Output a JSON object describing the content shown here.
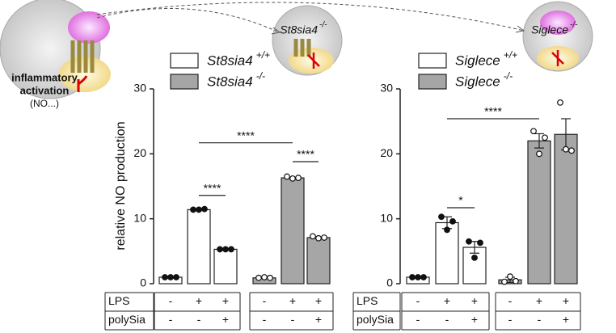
{
  "illustration": {
    "labels": [
      "inflammatory",
      "activation",
      "(NO...)",
      "St8sia4",
      "-/-",
      "Siglece",
      "-/-"
    ]
  },
  "chart_data": [
    {
      "type": "bar",
      "ylabel": "relative NO production",
      "ylim": [
        0,
        30
      ],
      "yticks": [
        0,
        10,
        20,
        30
      ],
      "grid": false,
      "series": [
        {
          "name": "St8sia4",
          "genotype": "+/+",
          "color": "#ffffff",
          "values": [
            1.0,
            11.4,
            5.3
          ],
          "points": [
            [
              1.0,
              1.0,
              1.0
            ],
            [
              11.4,
              11.4,
              11.5
            ],
            [
              5.3,
              5.3,
              5.3
            ]
          ]
        },
        {
          "name": "St8sia4",
          "genotype": "-/-",
          "color": "#a6a6a6",
          "values": [
            0.9,
            16.3,
            7.1
          ],
          "points": [
            [
              0.9,
              1.0,
              0.9
            ],
            [
              16.5,
              16.2,
              16.3
            ],
            [
              7.3,
              7.0,
              7.1
            ]
          ]
        }
      ],
      "annotations": [
        {
          "text": "****",
          "y": 13.6
        },
        {
          "text": "****",
          "y": 21.7
        },
        {
          "text": "****",
          "y": 18.8
        }
      ],
      "table": [
        {
          "label": "LPS",
          "cells": [
            "-",
            "+",
            "+",
            "-",
            "+",
            "+"
          ]
        },
        {
          "label": "polySia",
          "cells": [
            "-",
            "-",
            "+",
            "-",
            "-",
            "+"
          ]
        }
      ]
    },
    {
      "type": "bar",
      "ylim": [
        0,
        30
      ],
      "yticks": [
        0,
        10,
        20,
        30
      ],
      "grid": false,
      "series": [
        {
          "name": "Siglece",
          "genotype": "+/+",
          "color": "#ffffff",
          "values": [
            1.0,
            9.4,
            5.6
          ],
          "errors": [
            0.1,
            0.9,
            0.9
          ],
          "points": [
            [
              1.0,
              1.0,
              1.0
            ],
            [
              10.3,
              8.3,
              9.6
            ],
            [
              6.5,
              4.0,
              6.3
            ]
          ]
        },
        {
          "name": "Siglece",
          "genotype": "-/-",
          "color": "#a6a6a6",
          "values": [
            0.6,
            22.0,
            23.0
          ],
          "errors": [
            0.4,
            1.1,
            2.4
          ],
          "points": [
            [
              0.3,
              1.1,
              0.4
            ],
            [
              23.5,
              20.0,
              22.5
            ],
            [
              27.9,
              20.7,
              20.5
            ]
          ]
        }
      ],
      "annotations": [
        {
          "text": "*",
          "y": 11.7
        },
        {
          "text": "****",
          "y": 25.4
        }
      ],
      "table": [
        {
          "label": "LPS",
          "cells": [
            "-",
            "+",
            "+",
            "-",
            "+",
            "+"
          ]
        },
        {
          "label": "polySia",
          "cells": [
            "-",
            "-",
            "+",
            "-",
            "-",
            "+"
          ]
        }
      ]
    }
  ]
}
